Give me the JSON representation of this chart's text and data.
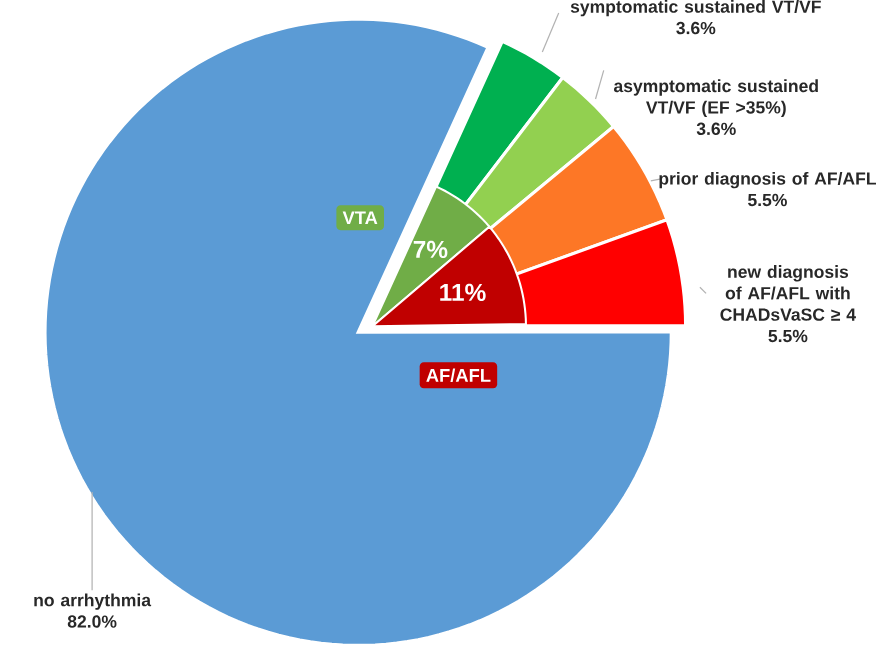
{
  "chart_data": {
    "type": "pie",
    "categories": [
      "symptomatic sustained VT/VF",
      "asymptomatic sustained VT/VF (EF >35%)",
      "prior diagnosis of AF/AFL",
      "new diagnosis of AF/AFL with CHADsVaSC ≥ 4",
      "no arrhythmia"
    ],
    "series": [
      {
        "values": [
          3.6,
          3.6,
          5.5,
          5.5,
          82.0
        ],
        "value_labels": [
          "3.6%",
          "3.6%",
          "5.5%",
          "5.5%",
          "82.0%"
        ],
        "colors": [
          "#00b050",
          "#92d050",
          "#fd7726",
          "#ff0000",
          "#5b9bd5"
        ]
      },
      {
        "values": [
          7,
          null,
          11,
          null,
          null
        ],
        "value_labels": [
          "7%",
          null,
          "11%",
          null,
          null
        ],
        "colors": [
          "#70ad47",
          null,
          "#c00000",
          null,
          null
        ]
      }
    ],
    "annotations": [
      "VTA",
      "AF/AFL"
    ],
    "legend": false
  }
}
